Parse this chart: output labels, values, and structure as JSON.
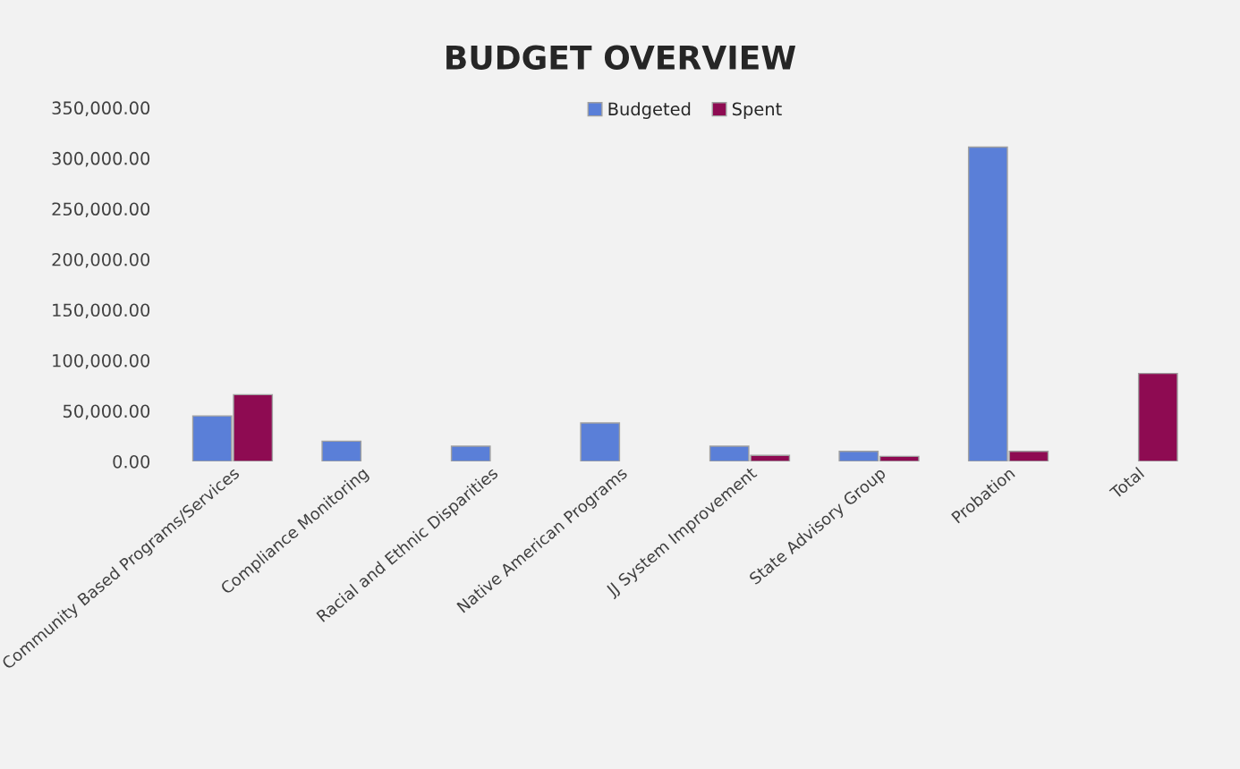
{
  "chart_data": {
    "type": "bar",
    "title": "BUDGET OVERVIEW",
    "categories": [
      "Community Based Programs/Services",
      "Compliance Monitoring",
      "Racial and Ethnic Disparities",
      "Native American Programs",
      "JJ System Improvement",
      "State Advisory Group",
      "Probation",
      "Total"
    ],
    "series": [
      {
        "name": "Budgeted",
        "color": "#5a7fd8",
        "values": [
          45000,
          20000,
          15000,
          38000,
          15000,
          10000,
          311000,
          null
        ]
      },
      {
        "name": "Spent",
        "color": "#8e0b52",
        "values": [
          66000,
          null,
          null,
          null,
          6000,
          5000,
          10000,
          87000
        ]
      }
    ],
    "ylim": [
      0,
      350000
    ],
    "yticks": [
      {
        "value": 0,
        "label": "0.00"
      },
      {
        "value": 50000,
        "label": "50,000.00"
      },
      {
        "value": 100000,
        "label": "100,000.00"
      },
      {
        "value": 150000,
        "label": "150,000.00"
      },
      {
        "value": 200000,
        "label": "200,000.00"
      },
      {
        "value": 250000,
        "label": "250,000.00"
      },
      {
        "value": 300000,
        "label": "300,000.00"
      },
      {
        "value": 350000,
        "label": "350,000.00"
      }
    ],
    "grid": false,
    "legend": "top"
  }
}
